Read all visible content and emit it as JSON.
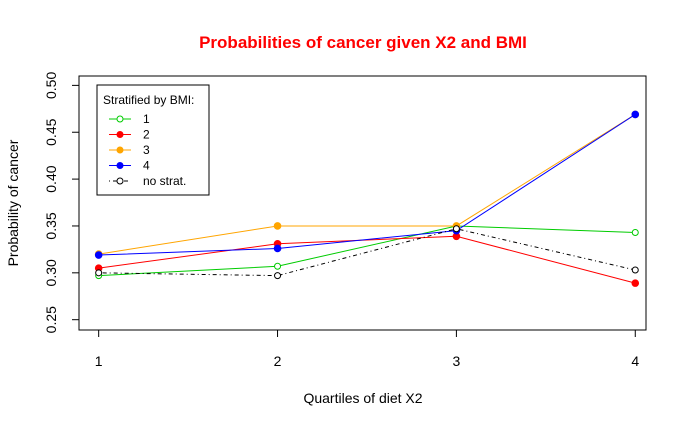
{
  "chart_data": {
    "type": "line",
    "title": "Probabilities of cancer given X2 and BMI",
    "xlabel": "Quartiles of diet X2",
    "ylabel": "Probability of cancer",
    "x": [
      1,
      2,
      3,
      4
    ],
    "xlim": [
      0.89,
      4.06
    ],
    "ylim": [
      0.239,
      0.51
    ],
    "xticks": [
      "1",
      "2",
      "3",
      "4"
    ],
    "yticks": [
      "0.25",
      "0.30",
      "0.35",
      "0.40",
      "0.45",
      "0.50"
    ],
    "grid": false,
    "legend": {
      "title": "Stratified by BMI:",
      "placement": "top-left"
    },
    "series": [
      {
        "name": "1",
        "color": "#00cc00",
        "marker": "open-circle",
        "line": "solid",
        "values": [
          0.297,
          0.307,
          0.35,
          0.343
        ]
      },
      {
        "name": "2",
        "color": "#ff0000",
        "marker": "filled-circle",
        "line": "solid",
        "values": [
          0.305,
          0.331,
          0.339,
          0.289
        ]
      },
      {
        "name": "3",
        "color": "#ffa500",
        "marker": "filled-circle",
        "line": "solid",
        "values": [
          0.32,
          0.35,
          0.35,
          0.469
        ]
      },
      {
        "name": "4",
        "color": "#0000ff",
        "marker": "filled-circle",
        "line": "solid",
        "values": [
          0.319,
          0.326,
          0.345,
          0.469
        ]
      },
      {
        "name": "no strat.",
        "color": "#000000",
        "marker": "open-circle",
        "line": "dashdot",
        "values": [
          0.3,
          0.297,
          0.347,
          0.303
        ]
      }
    ]
  }
}
